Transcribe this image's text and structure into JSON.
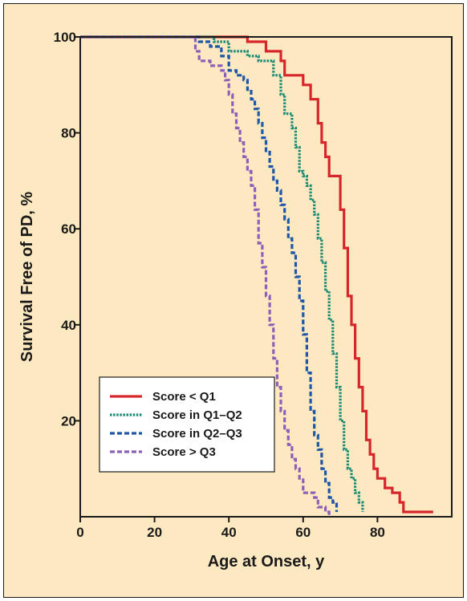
{
  "chart_data": {
    "type": "line",
    "step": true,
    "xlabel": "Age at Onset, y",
    "ylabel": "Survival Free of PD, %",
    "xlim": [
      0,
      100
    ],
    "ylim": [
      0,
      100
    ],
    "x_ticks": [
      0,
      20,
      40,
      60,
      80
    ],
    "y_ticks": [
      20,
      40,
      60,
      80,
      100
    ],
    "grid": false,
    "legend_position": "lower-left",
    "series": [
      {
        "name": "Score < Q1",
        "color": "#d7262b",
        "style": "solid",
        "points": [
          [
            0,
            100
          ],
          [
            40,
            100
          ],
          [
            45,
            99
          ],
          [
            50,
            97
          ],
          [
            54,
            95
          ],
          [
            55,
            92
          ],
          [
            58,
            92
          ],
          [
            60,
            90
          ],
          [
            62,
            87
          ],
          [
            64,
            82
          ],
          [
            65,
            78
          ],
          [
            66,
            75
          ],
          [
            67,
            71
          ],
          [
            69,
            71
          ],
          [
            70,
            64
          ],
          [
            71,
            56
          ],
          [
            72,
            46
          ],
          [
            73,
            40
          ],
          [
            74,
            33
          ],
          [
            75,
            27
          ],
          [
            76,
            22
          ],
          [
            77,
            16
          ],
          [
            78,
            13
          ],
          [
            79,
            10
          ],
          [
            80,
            8
          ],
          [
            82,
            6
          ],
          [
            84,
            5
          ],
          [
            86,
            3
          ],
          [
            87,
            1
          ],
          [
            95,
            1
          ]
        ]
      },
      {
        "name": "Score in Q1–Q2",
        "color": "#1b8a75",
        "style": "dotted",
        "points": [
          [
            0,
            100
          ],
          [
            33,
            100
          ],
          [
            36,
            99
          ],
          [
            40,
            97
          ],
          [
            45,
            96
          ],
          [
            48,
            95
          ],
          [
            52,
            92
          ],
          [
            54,
            88
          ],
          [
            55,
            84
          ],
          [
            56,
            84
          ],
          [
            57,
            81
          ],
          [
            58,
            77
          ],
          [
            59,
            72
          ],
          [
            60,
            71
          ],
          [
            61,
            69
          ],
          [
            62,
            66
          ],
          [
            63,
            63
          ],
          [
            64,
            58
          ],
          [
            65,
            53
          ],
          [
            66,
            47
          ],
          [
            67,
            41
          ],
          [
            68,
            34
          ],
          [
            69,
            27
          ],
          [
            70,
            20
          ],
          [
            71,
            14
          ],
          [
            72,
            10
          ],
          [
            73,
            8
          ],
          [
            74,
            5
          ],
          [
            75,
            3
          ],
          [
            76,
            1
          ]
        ]
      },
      {
        "name": "Score in Q2–Q3",
        "color": "#1e56a8",
        "style": "dashed",
        "points": [
          [
            0,
            100
          ],
          [
            30,
            100
          ],
          [
            32,
            99
          ],
          [
            35,
            98
          ],
          [
            38,
            96
          ],
          [
            40,
            93
          ],
          [
            42,
            92
          ],
          [
            44,
            91
          ],
          [
            45,
            89
          ],
          [
            46,
            87
          ],
          [
            47,
            85
          ],
          [
            48,
            82
          ],
          [
            49,
            79
          ],
          [
            50,
            76
          ],
          [
            51,
            73
          ],
          [
            52,
            70
          ],
          [
            53,
            68
          ],
          [
            54,
            65
          ],
          [
            55,
            62
          ],
          [
            56,
            58
          ],
          [
            57,
            55
          ],
          [
            58,
            50
          ],
          [
            59,
            45
          ],
          [
            60,
            38
          ],
          [
            61,
            30
          ],
          [
            62,
            22
          ],
          [
            63,
            17
          ],
          [
            64,
            14
          ],
          [
            65,
            10
          ],
          [
            66,
            7
          ],
          [
            67,
            4
          ],
          [
            68,
            3
          ],
          [
            69,
            1
          ]
        ]
      },
      {
        "name": "Score > Q3",
        "color": "#8b61b8",
        "style": "dashed",
        "points": [
          [
            0,
            100
          ],
          [
            30,
            100
          ],
          [
            31,
            97
          ],
          [
            32,
            95
          ],
          [
            35,
            94
          ],
          [
            38,
            93
          ],
          [
            39,
            91
          ],
          [
            40,
            88
          ],
          [
            41,
            84
          ],
          [
            42,
            81
          ],
          [
            43,
            78
          ],
          [
            44,
            75
          ],
          [
            45,
            72
          ],
          [
            46,
            69
          ],
          [
            47,
            64
          ],
          [
            48,
            57
          ],
          [
            49,
            52
          ],
          [
            50,
            46
          ],
          [
            51,
            40
          ],
          [
            52,
            33
          ],
          [
            53,
            27
          ],
          [
            54,
            22
          ],
          [
            55,
            18
          ],
          [
            56,
            15
          ],
          [
            57,
            12
          ],
          [
            58,
            10
          ],
          [
            59,
            8
          ],
          [
            60,
            5
          ],
          [
            63,
            4
          ],
          [
            64,
            2
          ],
          [
            66,
            1
          ],
          [
            67,
            0
          ]
        ]
      }
    ]
  }
}
